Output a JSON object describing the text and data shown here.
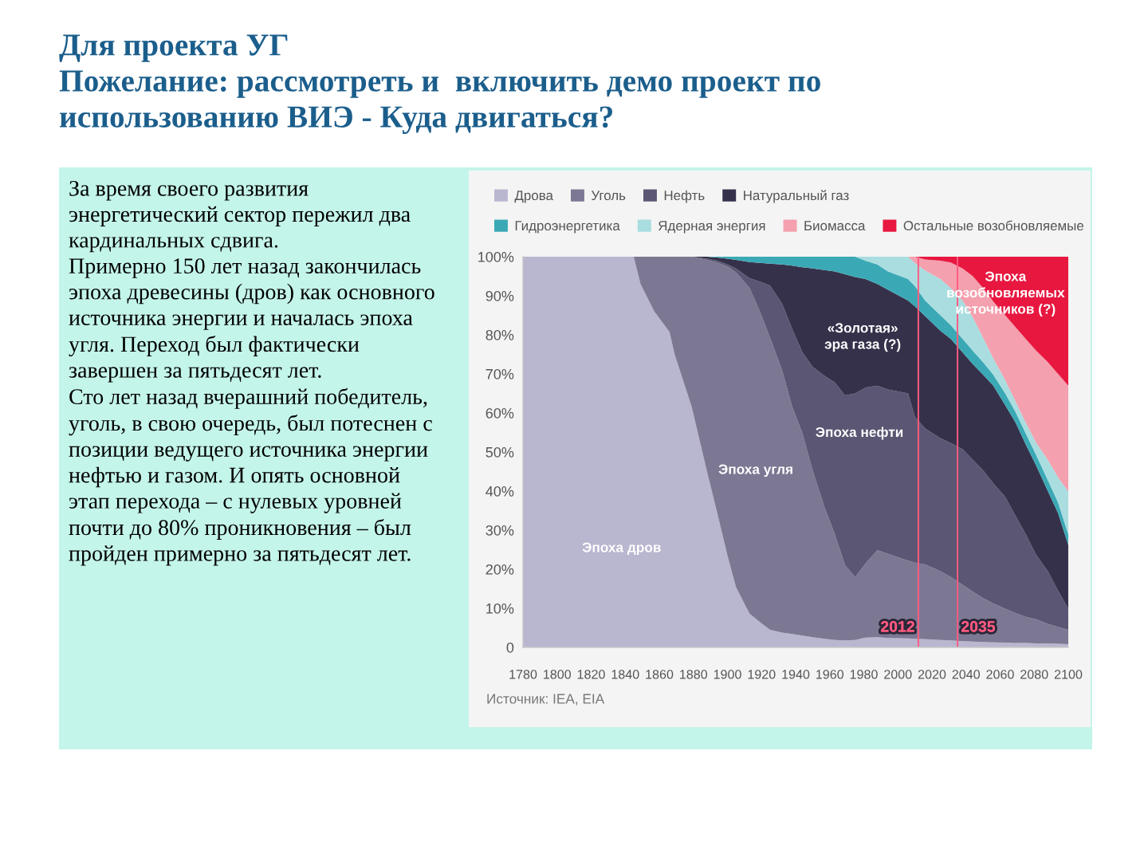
{
  "chart_data": {
    "type": "area",
    "stacked": true,
    "title": "Для проекта УГ\nПожелание: рассмотреть и  включить демо проект по\nиспользованию ВИЭ - Куда двигаться?",
    "annotations": [
      "За время своего развития\nэнергетический сектор пережил два\nкардинальных сдвига.\nПримерно 150 лет назад закончилась\nэпоха древесины (дров) как основного\nисточника энергии и началась эпоха\nугля. Переход был фактически\nзавершен за пятьдесят лет.\nСто лет назад вчерашний победитель,\nуголь, в свою очередь, был потеснен с\nпозиции ведущего источника энергии\nнефтью и газом. И опять основной\nэтап перехода – с нулевых уровней\nпочти до 80% проникновения – был\nпройден примерно за пятьдесят лет.",
      "Источник: IEA, EIA",
      "Эпоха дров",
      "Эпоха угля",
      "Эпоха нефти",
      "«Золотая»\nэра газа (?)",
      "Эпоха\nвозобновляемых\nисточников (?)"
    ],
    "x": [
      1780,
      1845,
      1849,
      1857,
      1866,
      1869,
      1879,
      1888,
      1894,
      1900,
      1905,
      1913,
      1919,
      1925,
      1932,
      1938,
      1944,
      1950,
      1957,
      1963,
      1969,
      1975,
      1981,
      1988,
      1994,
      2006,
      2010,
      2016,
      2025,
      2031,
      2038,
      2044,
      2050,
      2056,
      2063,
      2069,
      2075,
      2081,
      2088,
      2094,
      2100
    ],
    "xlim": [
      1780,
      2100
    ],
    "ylim": [
      0,
      100
    ],
    "xticks": [
      1780,
      1800,
      1820,
      1840,
      1860,
      1880,
      1900,
      1920,
      1940,
      1960,
      1980,
      2000,
      2020,
      2040,
      2060,
      2080,
      2100
    ],
    "yticks": [
      0,
      {
        "value": 10,
        "label": "10%"
      },
      {
        "value": 20,
        "label": "20%"
      },
      {
        "value": 30,
        "label": "30%"
      },
      {
        "value": 40,
        "label": "40%"
      },
      {
        "value": 50,
        "label": "50%"
      },
      {
        "value": 60,
        "label": "60%"
      },
      {
        "value": 70,
        "label": "70%"
      },
      {
        "value": 80,
        "label": "80%"
      },
      {
        "value": 90,
        "label": "90%"
      },
      {
        "value": 100,
        "label": "100%"
      }
    ],
    "series": [
      {
        "name": "Дрова",
        "color": "#b9b6cf",
        "values": [
          100,
          100,
          93,
          86,
          80.7,
          75,
          61.6,
          45,
          34.4,
          23.5,
          15.4,
          8.6,
          6.5,
          4.5,
          3.8,
          3.4,
          3,
          2.6,
          2.2,
          1.9,
          1.8,
          1.9,
          2.5,
          2.6,
          2.4,
          2.3,
          2.2,
          2.1,
          1.9,
          1.8,
          1.6,
          1.5,
          1.4,
          1.3,
          1.2,
          1.1,
          1.1,
          1,
          1,
          0.9,
          0.8
        ]
      },
      {
        "name": "Уголь",
        "color": "#7c7893",
        "values": [
          0,
          0,
          7,
          14,
          19.3,
          25,
          38.4,
          54.2,
          64.1,
          74,
          80.6,
          83.4,
          79.5,
          74.8,
          67.2,
          58.2,
          51.8,
          42.7,
          33.6,
          27.1,
          19.2,
          16.1,
          19,
          22.3,
          21.6,
          19.9,
          19.5,
          19.1,
          17.6,
          16.2,
          14.4,
          12.8,
          11.2,
          9.9,
          8.7,
          7.7,
          6.7,
          6.2,
          5,
          4.3,
          3.7
        ]
      },
      {
        "name": "Нефть",
        "color": "#5b5673",
        "values": [
          0,
          0,
          0,
          0,
          0,
          0,
          0,
          0.3,
          0.5,
          0.5,
          1,
          2.5,
          7.6,
          13.3,
          17,
          19.9,
          20.7,
          26.5,
          33.7,
          38.8,
          43.5,
          47,
          45,
          42.1,
          42,
          42.8,
          37.3,
          34.8,
          34,
          34.3,
          34.7,
          33.7,
          32.7,
          30.8,
          28.6,
          24.9,
          21.2,
          16.6,
          13.5,
          9.3,
          5.4
        ]
      },
      {
        "name": "Натуральный газ",
        "color": "#36314b",
        "values": [
          0,
          0,
          0,
          0,
          0,
          0,
          0,
          0.5,
          0.8,
          1.5,
          2.2,
          4.1,
          4.8,
          5.6,
          10,
          16.2,
          21.8,
          25.2,
          27.1,
          28.4,
          31,
          29.8,
          27.8,
          26,
          25.6,
          23.8,
          28.3,
          28.8,
          27.5,
          26.7,
          24.8,
          24.5,
          24.5,
          25,
          23.5,
          23.9,
          23,
          22.9,
          20.5,
          19.9,
          16.3
        ]
      },
      {
        "name": "Гидроэнергетика",
        "color": "#3aa9b5",
        "values": [
          0,
          0,
          0,
          0,
          0,
          0,
          0,
          0,
          0.2,
          0.5,
          0.8,
          1.4,
          1.6,
          1.8,
          2,
          2.3,
          2.7,
          3,
          3.4,
          3.8,
          4.5,
          5.2,
          4.7,
          5,
          4.7,
          5.5,
          5.2,
          4,
          4,
          3.5,
          3.5,
          3.4,
          3.2,
          2.8,
          3,
          2.7,
          2.8,
          2.7,
          2.8,
          2.7,
          2.8
        ]
      },
      {
        "name": "Ядерная энергия",
        "color": "#a9dde0",
        "values": [
          0,
          0,
          0,
          0,
          0,
          0,
          0,
          0,
          0,
          0,
          0,
          0,
          0,
          0,
          0,
          0,
          0,
          0,
          0,
          0,
          0,
          0,
          1,
          2,
          3.7,
          5.7,
          5.9,
          7.7,
          9.3,
          9.5,
          9.8,
          8.6,
          6.3,
          4.2,
          3.4,
          2.7,
          2.8,
          3.1,
          5.2,
          6.4,
          10.9
        ]
      },
      {
        "name": "Биомасса",
        "color": "#f4a0ae",
        "values": [
          0,
          0,
          0,
          0,
          0,
          0,
          0,
          0,
          0,
          0,
          0,
          0,
          0,
          0,
          0,
          0,
          0,
          0,
          0,
          0,
          0,
          0,
          0,
          0,
          0,
          0,
          1.6,
          2.8,
          4.7,
          6.5,
          8.2,
          10.5,
          12.7,
          14.5,
          16.6,
          19,
          21.4,
          23.5,
          25,
          26.5,
          27.1
        ]
      },
      {
        "name": "Остальные возобновляемые",
        "color": "#e8173f",
        "values": [
          0,
          0,
          0,
          0,
          0,
          0,
          0,
          0,
          0,
          0,
          0,
          0,
          0,
          0,
          0,
          0,
          0,
          0,
          0,
          0,
          0,
          0,
          0,
          0,
          0,
          0,
          0,
          0.7,
          1,
          1.5,
          3,
          5,
          8,
          11.5,
          15,
          18,
          21,
          24,
          27,
          30,
          33
        ]
      }
    ],
    "ref_lines": [
      {
        "axis": "x",
        "value": 2012,
        "label": "2012",
        "color": "#ff5a80"
      },
      {
        "axis": "x",
        "value": 2035,
        "label": "2035",
        "color": "#ff5a80"
      }
    ],
    "legend": "top"
  }
}
